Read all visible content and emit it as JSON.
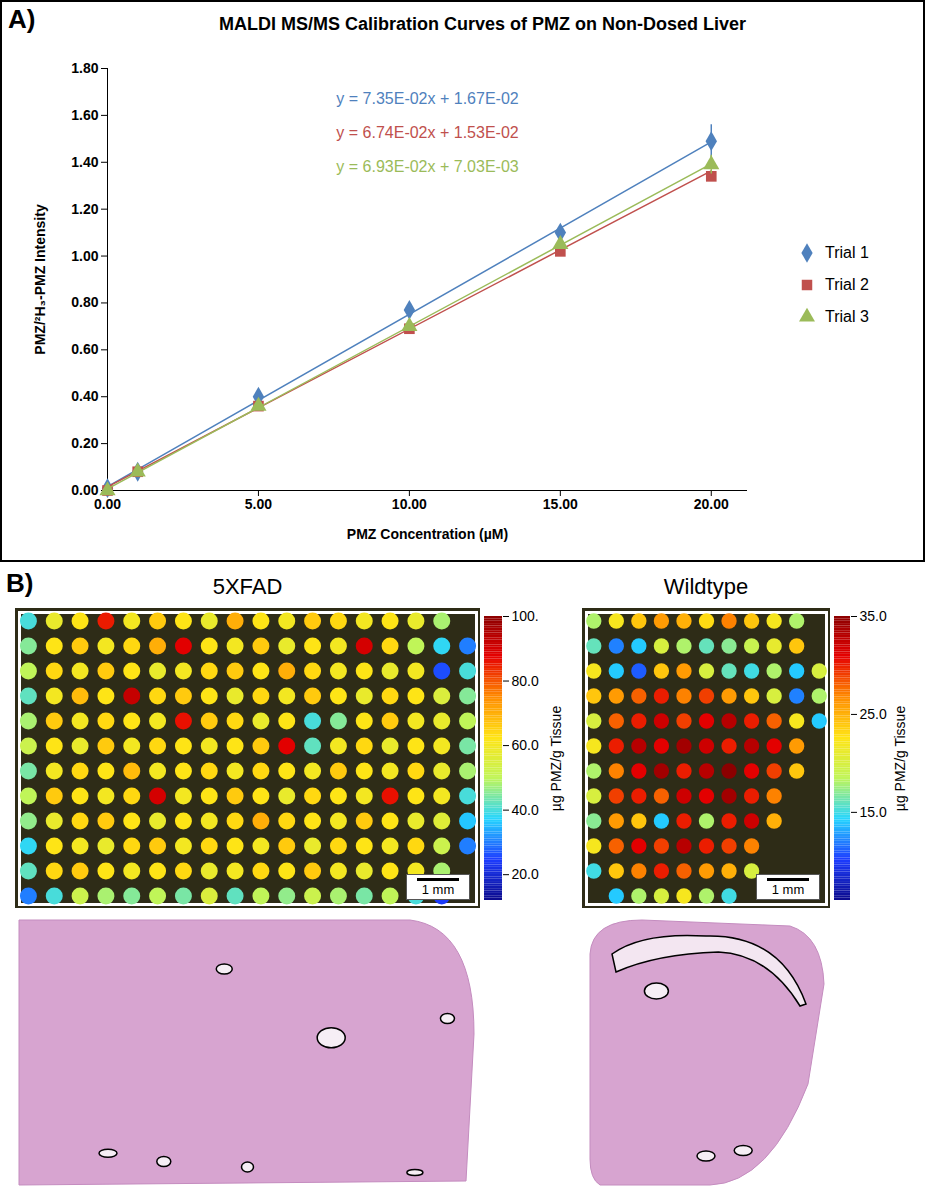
{
  "chart_data": [
    {
      "type": "scatter",
      "panel": "A)",
      "title": "MALDI MS/MS Calibration Curves of PMZ on Non-Dosed Liver",
      "x_label": "PMZ Concentration (µM)",
      "y_label": "PMZ/²H₃-PMZ Intensity",
      "x": [
        0,
        1,
        5,
        10,
        15,
        20
      ],
      "series": [
        {
          "name": "Trial 1",
          "color": "#4F81BD",
          "marker": "diamond",
          "values": [
            0.01,
            0.08,
            0.4,
            0.77,
            1.1,
            1.49
          ],
          "errors": [
            null,
            null,
            null,
            null,
            null,
            0.07
          ],
          "fit": {
            "equation": "y = 7.35E-02x + 1.67E-02",
            "slope": 0.0735,
            "intercept": 0.0167
          }
        },
        {
          "name": "Trial 2",
          "color": "#C0504D",
          "marker": "square",
          "values": [
            0,
            0.08,
            0.36,
            0.69,
            1.02,
            1.34
          ],
          "errors": [
            null,
            null,
            null,
            null,
            null,
            null
          ],
          "fit": {
            "equation": "y = 6.74E-02x + 1.53E-02",
            "slope": 0.0674,
            "intercept": 0.0153
          }
        },
        {
          "name": "Trial 3",
          "color": "#9BBB59",
          "marker": "triangle",
          "values": [
            0,
            0.08,
            0.36,
            0.7,
            1.05,
            1.39
          ],
          "errors": [
            null,
            null,
            null,
            null,
            null,
            0.04
          ],
          "fit": {
            "equation": "y = 6.93E-02x + 7.03E-03",
            "slope": 0.0693,
            "intercept": 0.00703
          }
        }
      ],
      "xlim": [
        0,
        21.2
      ],
      "xticks": [
        {
          "value": 0,
          "label": "0.00"
        },
        {
          "value": 5,
          "label": "5.00"
        },
        {
          "value": 10,
          "label": "10.00"
        },
        {
          "value": 15,
          "label": "15.00"
        },
        {
          "value": 20,
          "label": "20.00"
        }
      ],
      "ylim": [
        0,
        1.8
      ],
      "yticks": [
        {
          "value": 0,
          "label": "0.00"
        },
        {
          "value": 0.2,
          "label": "0.20"
        },
        {
          "value": 0.4,
          "label": "0.40"
        },
        {
          "value": 0.6,
          "label": "0.60"
        },
        {
          "value": 0.8,
          "label": "0.80"
        },
        {
          "value": 1.0,
          "label": "1.00"
        },
        {
          "value": 1.2,
          "label": "1.20"
        },
        {
          "value": 1.4,
          "label": "1.40"
        },
        {
          "value": 1.6,
          "label": "1.60"
        },
        {
          "value": 1.8,
          "label": "1.80"
        }
      ],
      "grid": false,
      "legend": "right"
    },
    {
      "type": "heatmap",
      "panel": "B)",
      "title": "5XFAD",
      "tick_labels": false,
      "scale_bar_label": "1 mm",
      "cells": [
        [
          40,
          58,
          62,
          85,
          60,
          66,
          62,
          58,
          70,
          62,
          60,
          66,
          64,
          60,
          62,
          58,
          48,
          null
        ],
        [
          45,
          62,
          66,
          60,
          64,
          70,
          88,
          62,
          60,
          66,
          58,
          62,
          60,
          90,
          64,
          50,
          38,
          30
        ],
        [
          50,
          64,
          60,
          66,
          62,
          58,
          60,
          64,
          66,
          62,
          70,
          64,
          60,
          62,
          58,
          60,
          26,
          40
        ],
        [
          42,
          60,
          68,
          62,
          92,
          64,
          66,
          62,
          58,
          64,
          60,
          66,
          62,
          58,
          64,
          62,
          55,
          45
        ],
        [
          48,
          66,
          60,
          64,
          62,
          60,
          86,
          66,
          64,
          58,
          62,
          40,
          45,
          62,
          66,
          60,
          58,
          50
        ],
        [
          52,
          62,
          58,
          66,
          60,
          64,
          62,
          60,
          62,
          66,
          88,
          42,
          60,
          64,
          58,
          62,
          60,
          44
        ],
        [
          44,
          60,
          64,
          62,
          68,
          60,
          62,
          64,
          60,
          64,
          62,
          60,
          66,
          62,
          60,
          64,
          58,
          48
        ],
        [
          50,
          66,
          62,
          60,
          64,
          90,
          60,
          62,
          66,
          62,
          58,
          64,
          62,
          60,
          86,
          62,
          60,
          40
        ],
        [
          46,
          58,
          64,
          66,
          62,
          58,
          62,
          60,
          64,
          70,
          64,
          62,
          60,
          66,
          62,
          58,
          56,
          36
        ],
        [
          38,
          62,
          60,
          58,
          64,
          66,
          60,
          64,
          62,
          60,
          66,
          58,
          64,
          62,
          60,
          64,
          52,
          30
        ],
        [
          42,
          64,
          66,
          62,
          60,
          62,
          64,
          58,
          60,
          64,
          62,
          66,
          60,
          58,
          62,
          60,
          48,
          null
        ],
        [
          30,
          40,
          52,
          48,
          45,
          50,
          44,
          55,
          42,
          50,
          46,
          52,
          48,
          44,
          50,
          40,
          24,
          null
        ]
      ],
      "colorbar": {
        "label": "µg PMZ/g Tissue",
        "range": [
          12,
          100
        ],
        "ticks": [
          {
            "value": 20,
            "label": "20.0"
          },
          {
            "value": 40,
            "label": "40.0"
          },
          {
            "value": 60,
            "label": "60.0"
          },
          {
            "value": 80,
            "label": "80.0"
          },
          {
            "value": 100,
            "label": "100."
          }
        ]
      }
    },
    {
      "type": "heatmap",
      "title": "Wildtype",
      "tick_labels": false,
      "scale_bar_label": "1 mm",
      "cells": [
        [
          18,
          22,
          24,
          26,
          25,
          23,
          27,
          24,
          22,
          18,
          null
        ],
        [
          16,
          12,
          14,
          20,
          18,
          16,
          17,
          19,
          21,
          24,
          null
        ],
        [
          22,
          14,
          11,
          24,
          26,
          20,
          16,
          15,
          18,
          14,
          20
        ],
        [
          24,
          26,
          28,
          30,
          27,
          29,
          26,
          24,
          20,
          12,
          18
        ],
        [
          20,
          28,
          30,
          32,
          29,
          31,
          33,
          30,
          28,
          22,
          14
        ],
        [
          22,
          30,
          33,
          31,
          34,
          32,
          30,
          33,
          31,
          26,
          null
        ],
        [
          18,
          27,
          31,
          34,
          30,
          33,
          35,
          31,
          29,
          24,
          null
        ],
        [
          20,
          29,
          30,
          28,
          32,
          31,
          34,
          30,
          27,
          null,
          null
        ],
        [
          17,
          26,
          24,
          14,
          30,
          18,
          30,
          32,
          25,
          null,
          null
        ],
        [
          22,
          28,
          31,
          29,
          33,
          30,
          29,
          27,
          null,
          null,
          null
        ],
        [
          15,
          24,
          27,
          30,
          28,
          26,
          25,
          20,
          null,
          null,
          null
        ],
        [
          null,
          14,
          18,
          20,
          22,
          18,
          15,
          null,
          null,
          null,
          null
        ]
      ],
      "colorbar": {
        "label": "µg PMZ/g Tissue",
        "range": [
          6,
          35
        ],
        "ticks": [
          {
            "value": 15,
            "label": "15.0"
          },
          {
            "value": 25,
            "label": "25.0"
          },
          {
            "value": 35,
            "label": "35.0"
          }
        ]
      }
    }
  ]
}
